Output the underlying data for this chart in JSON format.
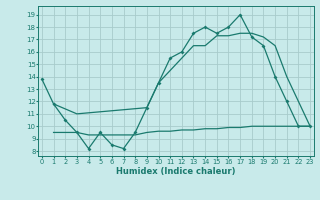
{
  "title": "",
  "xlabel": "Humidex (Indice chaleur)",
  "bg_color": "#c8eaea",
  "grid_color": "#a8cccc",
  "line_color": "#1a7a6e",
  "x_line1": [
    0,
    1,
    2,
    3,
    4,
    5,
    6,
    7,
    8,
    9,
    10,
    11,
    12,
    13,
    14,
    15,
    16,
    17,
    18,
    19,
    20,
    21,
    22,
    23
  ],
  "y_line1": [
    13.8,
    11.8,
    10.5,
    9.5,
    8.2,
    9.5,
    8.5,
    8.2,
    9.5,
    11.5,
    13.5,
    15.5,
    16.0,
    17.5,
    18.0,
    17.5,
    18.0,
    19.0,
    17.2,
    16.5,
    14.0,
    12.0,
    10.0,
    10.0
  ],
  "x_line2": [
    1,
    3,
    9,
    10,
    11,
    12,
    13,
    14,
    15,
    16,
    17,
    18,
    19,
    20,
    21,
    22,
    23
  ],
  "y_line2": [
    11.8,
    11.0,
    11.5,
    13.5,
    14.5,
    15.5,
    16.5,
    16.5,
    17.3,
    17.3,
    17.5,
    17.5,
    17.2,
    16.5,
    14.0,
    12.0,
    10.0
  ],
  "x_line3": [
    1,
    3,
    4,
    5,
    6,
    7,
    8,
    9,
    10,
    11,
    12,
    13,
    14,
    15,
    16,
    17,
    18,
    19,
    20,
    21,
    22,
    23
  ],
  "y_line3": [
    9.5,
    9.5,
    9.3,
    9.3,
    9.3,
    9.3,
    9.3,
    9.5,
    9.6,
    9.6,
    9.7,
    9.7,
    9.8,
    9.8,
    9.9,
    9.9,
    10.0,
    10.0,
    10.0,
    10.0,
    10.0,
    10.0
  ],
  "xlim": [
    -0.3,
    23.3
  ],
  "ylim": [
    7.6,
    19.7
  ],
  "yticks": [
    8,
    9,
    10,
    11,
    12,
    13,
    14,
    15,
    16,
    17,
    18,
    19
  ],
  "xticks": [
    0,
    1,
    2,
    3,
    4,
    5,
    6,
    7,
    8,
    9,
    10,
    11,
    12,
    13,
    14,
    15,
    16,
    17,
    18,
    19,
    20,
    21,
    22,
    23
  ]
}
